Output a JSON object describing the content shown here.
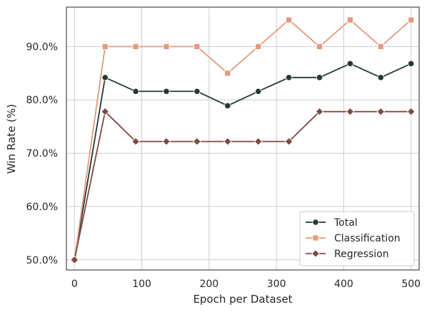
{
  "chart_data": {
    "type": "line",
    "xlabel": "Epoch per Dataset",
    "ylabel": "Win Rate (%)",
    "xlim": [
      -12,
      512
    ],
    "ylim": [
      48.1,
      97.4
    ],
    "xticks": [
      0,
      100,
      200,
      300,
      400,
      500
    ],
    "xtick_labels": [
      "0",
      "100",
      "200",
      "300",
      "400",
      "500"
    ],
    "yticks": [
      50,
      60,
      70,
      80,
      90
    ],
    "ytick_labels": [
      "50.0%",
      "60.0%",
      "70.0%",
      "80.0%",
      "90.0%"
    ],
    "grid": true,
    "legend_position": "bottom-right",
    "x": [
      0,
      45.5,
      91,
      136.5,
      182,
      227.5,
      273,
      318.5,
      364,
      409.5,
      455,
      500
    ],
    "series": [
      {
        "name": "Total",
        "color": "#233a37",
        "marker": "circle",
        "values": [
          50.0,
          84.2,
          81.6,
          81.6,
          81.6,
          78.9,
          81.6,
          84.2,
          84.2,
          86.8,
          84.2,
          86.8
        ]
      },
      {
        "name": "Classification",
        "color": "#e39a7c",
        "marker": "square",
        "values": [
          50.0,
          90.0,
          90.0,
          90.0,
          90.0,
          85.0,
          90.0,
          95.0,
          90.0,
          95.0,
          90.0,
          95.0
        ]
      },
      {
        "name": "Regression",
        "color": "#7b4b3f",
        "marker": "diamond",
        "values": [
          50.0,
          77.8,
          72.2,
          72.2,
          72.2,
          72.2,
          72.2,
          72.2,
          77.8,
          77.8,
          77.8,
          77.8
        ]
      }
    ]
  }
}
